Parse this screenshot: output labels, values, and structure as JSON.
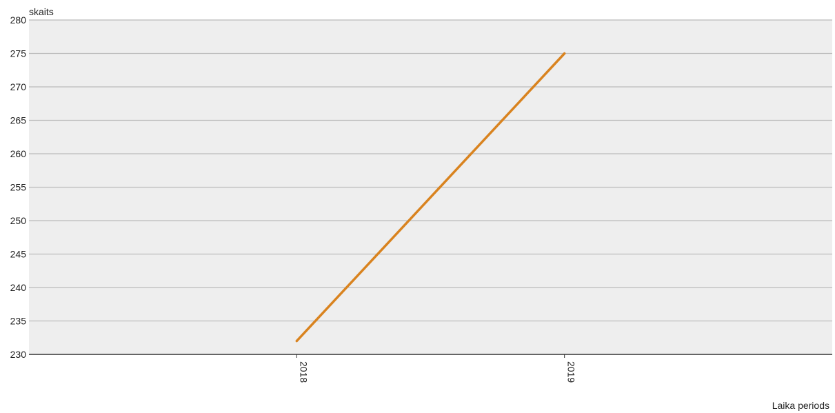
{
  "chart_data": {
    "type": "line",
    "title": "",
    "xlabel": "Laika periods",
    "ylabel": "skaits",
    "categories": [
      "2018",
      "2019"
    ],
    "series": [
      {
        "values": [
          232,
          275
        ]
      }
    ],
    "ylim": [
      230,
      280
    ],
    "yticks": [
      230,
      235,
      240,
      245,
      250,
      255,
      260,
      265,
      270,
      275,
      280
    ],
    "grid": true,
    "legend": "none",
    "colors": {
      "line": "#d9831f",
      "plot_background": "#eeeeee",
      "grid": "#bbbbbb",
      "axis": "#333333"
    }
  }
}
